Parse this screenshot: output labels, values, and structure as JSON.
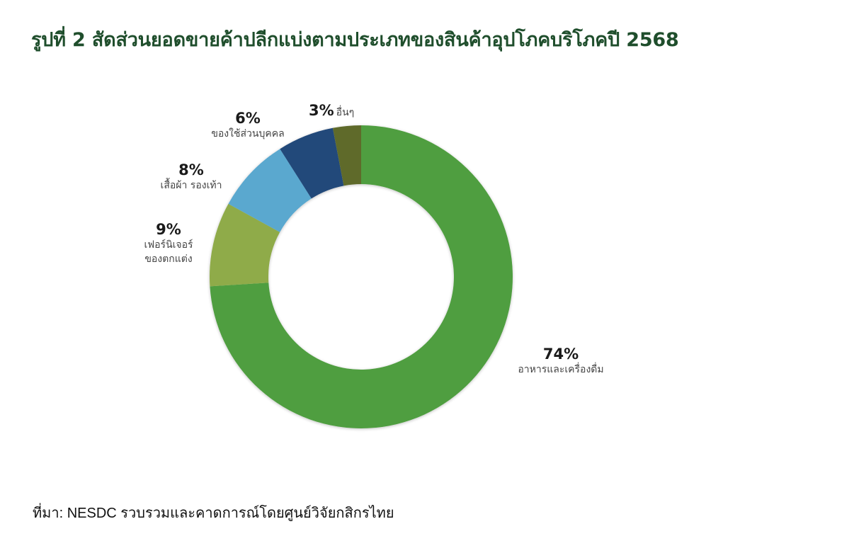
{
  "title": "รูปที่ 2 สัดส่วนยอดขายค้าปลีกแบ่งตามประเภทของสินค้าอุปโภคบริโภคปี 2568",
  "source": "ที่มา: NESDC รวบรวมและคาดการณ์โดยศูนย์วิจัยกสิกรไทย",
  "labels": {
    "food": {
      "pct": "74%",
      "name": "อาหารและเครื่องดื่ม"
    },
    "furniture": {
      "pct": "9%",
      "name_line1": "เฟอร์นิเจอร์",
      "name_line2": "ของตกแต่ง"
    },
    "clothing": {
      "pct": "8%",
      "name": "เสื้อผ้า รองเท้า"
    },
    "personal": {
      "pct": "6%",
      "name": "ของใช้ส่วนบุคคล"
    },
    "other": {
      "pct": "3%",
      "name": "อื่นๆ"
    }
  },
  "colors": {
    "title": "#1f4e2c",
    "food": "#4f9e3f",
    "furniture": "#8fab4a",
    "clothing": "#5aa8cf",
    "personal": "#23487a",
    "other": "#5e6a2c"
  },
  "chart_data": {
    "type": "pie",
    "subtype": "donut",
    "title": "รูปที่ 2 สัดส่วนยอดขายค้าปลีกแบ่งตามประเภทของสินค้าอุปโภคบริโภคปี 2568",
    "categories": [
      "อาหารและเครื่องดื่ม",
      "เฟอร์นิเจอร์ ของตกแต่ง",
      "เสื้อผ้า รองเท้า",
      "ของใช้ส่วนบุคคล",
      "อื่นๆ"
    ],
    "values": [
      74,
      9,
      8,
      6,
      3
    ],
    "unit": "%",
    "colors": [
      "#4f9e3f",
      "#8fab4a",
      "#5aa8cf",
      "#23487a",
      "#5e6a2c"
    ],
    "start_angle": "12 o'clock",
    "direction": "clockwise",
    "legend": "none (direct labels)",
    "source": "ที่มา: NESDC รวบรวมและคาดการณ์โดยศูนย์วิจัยกสิกรไทย"
  }
}
